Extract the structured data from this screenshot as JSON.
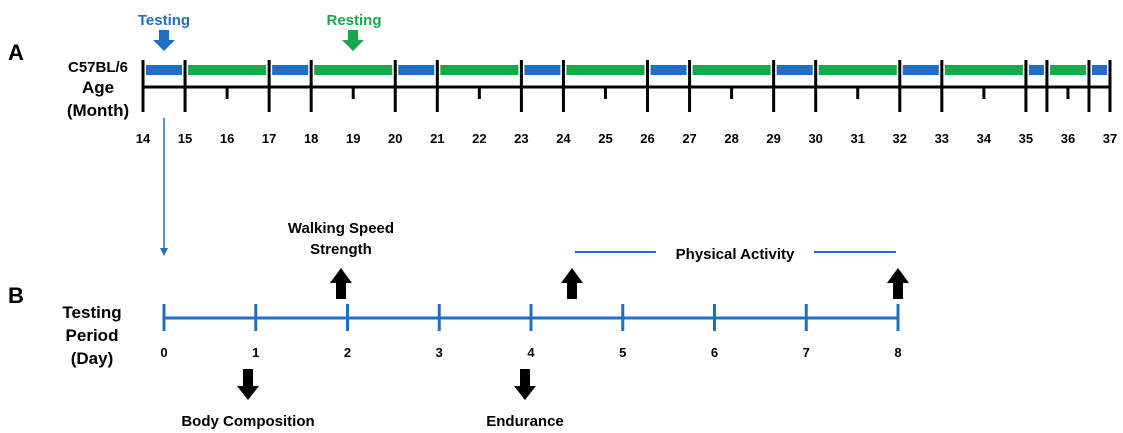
{
  "panel_a": {
    "letter": "A",
    "strain": "C57BL/6",
    "axis_label_line1": "Age",
    "axis_label_line2": "(Month)",
    "legend": {
      "testing": {
        "label": "Testing",
        "color": "#1f6fc5"
      },
      "resting": {
        "label": "Resting",
        "color": "#18a84b"
      }
    },
    "months": [
      14,
      15,
      16,
      17,
      18,
      19,
      20,
      21,
      22,
      23,
      24,
      25,
      26,
      27,
      28,
      29,
      30,
      31,
      32,
      33,
      34,
      35,
      36,
      37
    ],
    "segments": [
      {
        "type": "testing",
        "start": 14,
        "end": 15
      },
      {
        "type": "resting",
        "start": 15,
        "end": 17
      },
      {
        "type": "testing",
        "start": 17,
        "end": 18
      },
      {
        "type": "resting",
        "start": 18,
        "end": 20
      },
      {
        "type": "testing",
        "start": 20,
        "end": 21
      },
      {
        "type": "resting",
        "start": 21,
        "end": 23
      },
      {
        "type": "testing",
        "start": 23,
        "end": 24
      },
      {
        "type": "resting",
        "start": 24,
        "end": 26
      },
      {
        "type": "testing",
        "start": 26,
        "end": 27
      },
      {
        "type": "resting",
        "start": 27,
        "end": 29
      },
      {
        "type": "testing",
        "start": 29,
        "end": 30
      },
      {
        "type": "resting",
        "start": 30,
        "end": 32
      },
      {
        "type": "testing",
        "start": 32,
        "end": 33
      },
      {
        "type": "resting",
        "start": 33,
        "end": 35
      },
      {
        "type": "testing",
        "start": 35,
        "end": 35.5
      },
      {
        "type": "resting",
        "start": 35.5,
        "end": 36.5
      },
      {
        "type": "testing",
        "start": 36.5,
        "end": 37
      }
    ]
  },
  "panel_b": {
    "letter": "B",
    "axis_label_line1": "Testing",
    "axis_label_line2": "Period",
    "axis_label_line3": "(Day)",
    "line_color": "#1f6fc5",
    "days": [
      0,
      1,
      2,
      3,
      4,
      5,
      6,
      7,
      8
    ],
    "events": {
      "walking_speed": "Walking Speed",
      "strength": "Strength",
      "physical_activity": "Physical Activity",
      "body_composition": "Body Composition",
      "endurance": "Endurance"
    }
  }
}
